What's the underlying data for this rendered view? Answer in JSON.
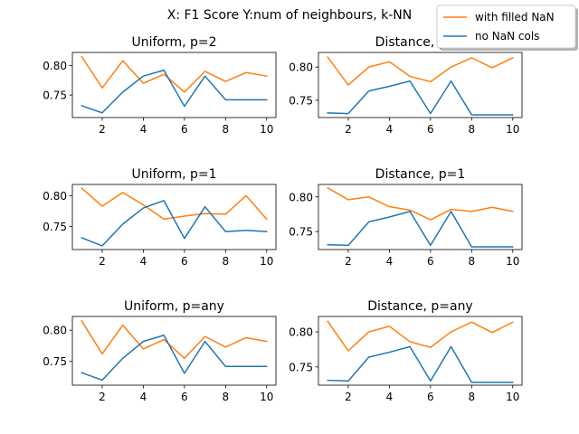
{
  "figure": {
    "suptitle": "X: F1 Score Y:num of neighbours, k-NN"
  },
  "legend": {
    "placement": "top-right",
    "entries": [
      "with filled NaN",
      "no NaN cols"
    ]
  },
  "colors": {
    "with_filled_nan": "#ff7f0e",
    "no_nan_cols": "#1f77b4"
  },
  "chart_data": [
    {
      "type": "line",
      "title": "Uniform, p=2",
      "x": [
        1,
        2,
        3,
        4,
        5,
        6,
        7,
        8,
        9,
        10
      ],
      "xticks": [
        2,
        4,
        6,
        8,
        10
      ],
      "yticks": [
        0.75,
        0.8
      ],
      "ytick_labels": [
        "0.75",
        "0.80"
      ],
      "xlim": [
        0.55,
        10.45
      ],
      "ylim": [
        0.712,
        0.822
      ],
      "series": [
        {
          "name": "with filled NaN",
          "values": [
            0.815,
            0.762,
            0.808,
            0.77,
            0.785,
            0.755,
            0.79,
            0.773,
            0.788,
            0.782
          ]
        },
        {
          "name": "no NaN cols",
          "values": [
            0.732,
            0.72,
            0.755,
            0.782,
            0.792,
            0.731,
            0.782,
            0.742,
            0.742,
            0.742
          ]
        }
      ]
    },
    {
      "type": "line",
      "title": "Distance, p=2",
      "x": [
        1,
        2,
        3,
        4,
        5,
        6,
        7,
        8,
        9,
        10
      ],
      "xticks": [
        2,
        4,
        6,
        8,
        10
      ],
      "yticks": [
        0.75,
        0.8
      ],
      "ytick_labels": [
        "0.75",
        "0.80"
      ],
      "xlim": [
        0.55,
        10.45
      ],
      "ylim": [
        0.724,
        0.822
      ],
      "series": [
        {
          "name": "with filled NaN",
          "values": [
            0.815,
            0.773,
            0.8,
            0.808,
            0.786,
            0.778,
            0.8,
            0.814,
            0.799,
            0.814
          ]
        },
        {
          "name": "no NaN cols",
          "values": [
            0.731,
            0.73,
            0.764,
            0.771,
            0.779,
            0.73,
            0.779,
            0.728,
            0.728,
            0.728
          ]
        }
      ]
    },
    {
      "type": "line",
      "title": "Uniform, p=1",
      "x": [
        1,
        2,
        3,
        4,
        5,
        6,
        7,
        8,
        9,
        10
      ],
      "xticks": [
        2,
        4,
        6,
        8,
        10
      ],
      "yticks": [
        0.75,
        0.8
      ],
      "ytick_labels": [
        "0.75",
        "0.80"
      ],
      "xlim": [
        0.55,
        10.45
      ],
      "ylim": [
        0.713,
        0.818
      ],
      "series": [
        {
          "name": "with filled NaN",
          "values": [
            0.812,
            0.783,
            0.805,
            0.785,
            0.762,
            0.767,
            0.771,
            0.77,
            0.8,
            0.762
          ]
        },
        {
          "name": "no NaN cols",
          "values": [
            0.732,
            0.719,
            0.754,
            0.78,
            0.792,
            0.731,
            0.782,
            0.742,
            0.744,
            0.742
          ]
        }
      ]
    },
    {
      "type": "line",
      "title": "Distance, p=1",
      "x": [
        1,
        2,
        3,
        4,
        5,
        6,
        7,
        8,
        9,
        10
      ],
      "xticks": [
        2,
        4,
        6,
        8,
        10
      ],
      "yticks": [
        0.75,
        0.8
      ],
      "ytick_labels": [
        "0.75",
        "0.80"
      ],
      "xlim": [
        0.55,
        10.45
      ],
      "ylim": [
        0.724,
        0.818
      ],
      "series": [
        {
          "name": "with filled NaN",
          "values": [
            0.813,
            0.796,
            0.8,
            0.786,
            0.781,
            0.767,
            0.782,
            0.779,
            0.785,
            0.779
          ]
        },
        {
          "name": "no NaN cols",
          "values": [
            0.731,
            0.73,
            0.764,
            0.771,
            0.779,
            0.73,
            0.779,
            0.728,
            0.728,
            0.728
          ]
        }
      ]
    },
    {
      "type": "line",
      "title": "Uniform, p=any",
      "x": [
        1,
        2,
        3,
        4,
        5,
        6,
        7,
        8,
        9,
        10
      ],
      "xticks": [
        2,
        4,
        6,
        8,
        10
      ],
      "yticks": [
        0.75,
        0.8
      ],
      "ytick_labels": [
        "0.75",
        "0.80"
      ],
      "xlim": [
        0.55,
        10.45
      ],
      "ylim": [
        0.712,
        0.822
      ],
      "series": [
        {
          "name": "with filled NaN",
          "values": [
            0.815,
            0.762,
            0.808,
            0.77,
            0.785,
            0.755,
            0.79,
            0.773,
            0.788,
            0.782
          ]
        },
        {
          "name": "no NaN cols",
          "values": [
            0.732,
            0.72,
            0.755,
            0.782,
            0.792,
            0.731,
            0.782,
            0.742,
            0.742,
            0.742
          ]
        }
      ]
    },
    {
      "type": "line",
      "title": "Distance, p=any",
      "x": [
        1,
        2,
        3,
        4,
        5,
        6,
        7,
        8,
        9,
        10
      ],
      "xticks": [
        2,
        4,
        6,
        8,
        10
      ],
      "yticks": [
        0.75,
        0.8
      ],
      "ytick_labels": [
        "0.75",
        "0.80"
      ],
      "xlim": [
        0.55,
        10.45
      ],
      "ylim": [
        0.724,
        0.822
      ],
      "series": [
        {
          "name": "with filled NaN",
          "values": [
            0.815,
            0.773,
            0.8,
            0.808,
            0.786,
            0.778,
            0.8,
            0.814,
            0.799,
            0.814
          ]
        },
        {
          "name": "no NaN cols",
          "values": [
            0.731,
            0.73,
            0.764,
            0.771,
            0.779,
            0.73,
            0.779,
            0.728,
            0.728,
            0.728
          ]
        }
      ]
    }
  ]
}
